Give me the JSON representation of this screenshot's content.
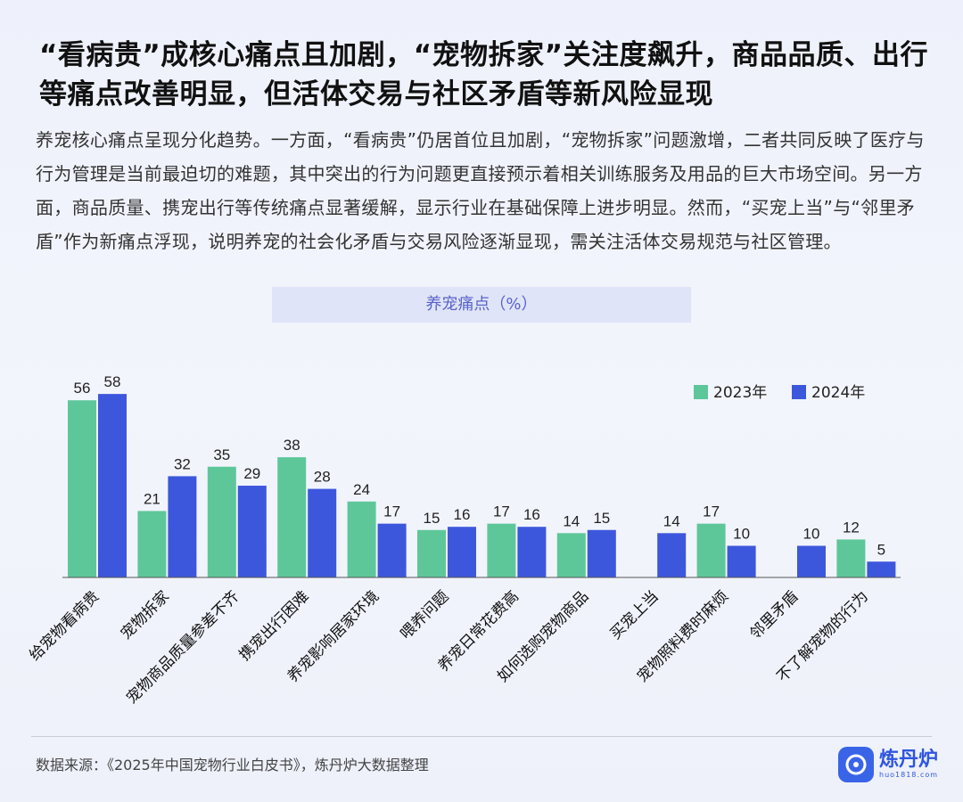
{
  "header": {
    "title": "“看病贵”成核心痛点且加剧，“宠物拆家”关注度飙升，商品品质、出行等痛点改善明显，但活体交易与社区矛盾等新风险显现",
    "intro": "养宠核心痛点呈现分化趋势。一方面，“看病贵”仍居首位且加剧，“宠物拆家”问题激增，二者共同反映了医疗与行为管理是当前最迫切的难题，其中突出的行为问题更直接预示着相关训练服务及用品的巨大市场空间。另一方面，商品质量、携宠出行等传统痛点显著缓解，显示行业在基础保障上进步明显。然而，“买宠上当”与“邻里矛盾”作为新痛点浮现，说明养宠的社会化矛盾与交易风险逐渐显现，需关注活体交易规范与社区管理。"
  },
  "chart_data": {
    "type": "bar",
    "title": "养宠痛点（%）",
    "categories": [
      "给宠物看病贵",
      "宠物拆家",
      "宠物商品质量参差不齐",
      "携宠出行困难",
      "养宠影响居家环境",
      "喂养问题",
      "养宠日常花费高",
      "如何选购宠物商品",
      "买宠上当",
      "宠物照料费时麻烦",
      "邻里矛盾",
      "不了解宠物的行为"
    ],
    "series": [
      {
        "name": "2023年",
        "color": "#5ec79a",
        "values": [
          56,
          21,
          35,
          38,
          24,
          15,
          17,
          14,
          null,
          17,
          null,
          12
        ]
      },
      {
        "name": "2024年",
        "color": "#3d57dc",
        "values": [
          58,
          32,
          29,
          28,
          17,
          16,
          16,
          15,
          14,
          10,
          10,
          5
        ]
      }
    ],
    "ylim": [
      0,
      60
    ],
    "grid": false,
    "legend": "top-right"
  },
  "footer": {
    "source": "数据来源：《2025年中国宠物行业白皮书》，炼丹炉大数据整理",
    "logo_name": "炼丹炉",
    "logo_url": "huo1818.com"
  }
}
